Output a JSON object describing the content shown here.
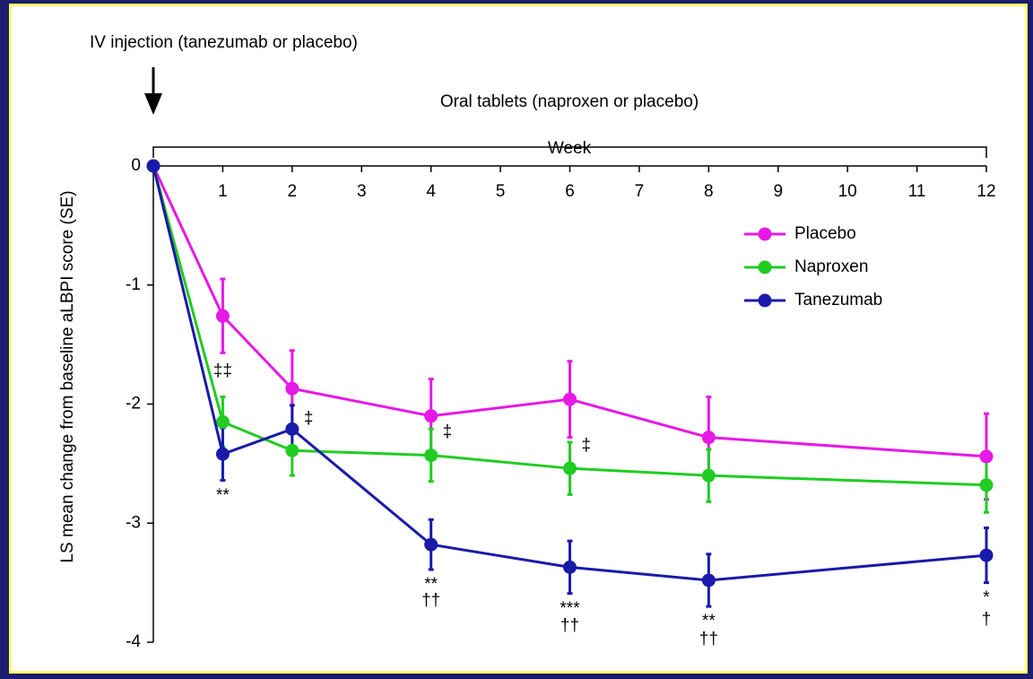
{
  "chart_data": {
    "type": "line",
    "header_text": "IV injection (tanezumab or placebo)",
    "bracket_text": "Oral tablets (naproxen or placebo)",
    "x_label": "Week",
    "y_label": "LS mean change from baseline aLBPI score (SE)",
    "x": [
      0,
      1,
      2,
      4,
      6,
      8,
      12
    ],
    "xlim": [
      0,
      12
    ],
    "xticks": [
      1,
      2,
      3,
      4,
      5,
      6,
      7,
      8,
      9,
      10,
      11,
      12
    ],
    "ylim": [
      -4,
      0
    ],
    "yticks": [
      0,
      -1,
      -2,
      -3,
      -4
    ],
    "series": [
      {
        "name": "Placebo",
        "color": "#e619e6",
        "values": [
          0,
          -1.26,
          -1.87,
          -2.1,
          -1.96,
          -2.28,
          -2.44
        ],
        "errors": [
          0,
          0.31,
          0.32,
          0.31,
          0.32,
          0.34,
          0.36
        ]
      },
      {
        "name": "Naproxen",
        "color": "#22cc22",
        "values": [
          0,
          -2.15,
          -2.39,
          -2.43,
          -2.54,
          -2.6,
          -2.68
        ],
        "errors": [
          0,
          0.21,
          0.21,
          0.22,
          0.22,
          0.22,
          0.23
        ]
      },
      {
        "name": "Tanezumab",
        "color": "#1a1aaa",
        "values": [
          0,
          -2.42,
          -2.21,
          -3.18,
          -3.37,
          -3.48,
          -3.27
        ],
        "errors": [
          0,
          0.22,
          0.2,
          0.21,
          0.22,
          0.22,
          0.23
        ]
      }
    ],
    "annotations": [
      {
        "x": 1,
        "text": "‡‡"
      },
      {
        "x": 1,
        "text": "**"
      },
      {
        "x": 2,
        "text": "‡"
      },
      {
        "x": 4,
        "text": "‡"
      },
      {
        "x": 4,
        "text": "**"
      },
      {
        "x": 4,
        "text": "††"
      },
      {
        "x": 6,
        "text": "‡"
      },
      {
        "x": 6,
        "text": "***"
      },
      {
        "x": 6,
        "text": "††"
      },
      {
        "x": 8,
        "text": "**"
      },
      {
        "x": 8,
        "text": "††"
      },
      {
        "x": 12,
        "text": "*"
      },
      {
        "x": 12,
        "text": "†"
      }
    ]
  }
}
